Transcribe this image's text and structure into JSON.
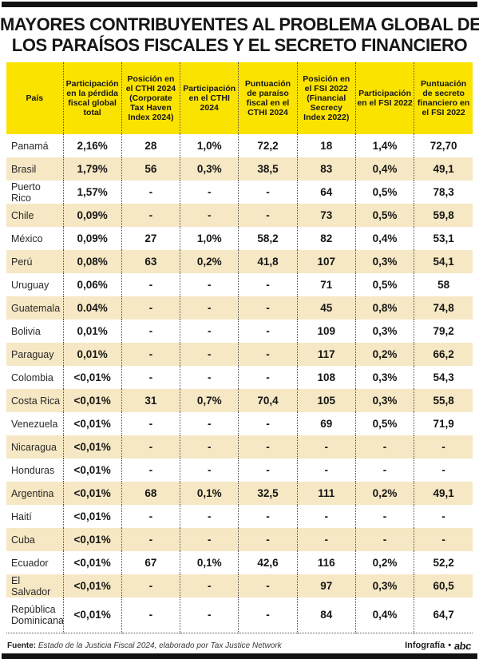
{
  "title": {
    "line1": "MAYORES CONTRIBUYENTES AL PROBLEMA GLOBAL DE",
    "line2": "LOS PARAÍSOS FISCALES Y EL SECRETO FINANCIERO"
  },
  "chart_data": {
    "type": "table",
    "title": "Mayores contribuyentes al problema global de los paraísos fiscales y el secreto financiero",
    "columns": [
      "País",
      "Participación en la pérdida fiscal global total",
      "Posición en el CTHI 2024 (Corporate Tax Haven Index 2024)",
      "Participación en el CTHI 2024",
      "Puntuación de paraíso fiscal en el CTHI 2024",
      "Posición en el FSI 2022 (Financial Secrecy Index 2022)",
      "Participación en el FSI 2022",
      "Puntuación de secreto financiero en el FSI 2022"
    ],
    "rows": [
      {
        "country": "Panamá",
        "values": [
          "2,16%",
          "28",
          "1,0%",
          "72,2",
          "18",
          "1,4%",
          "72,70"
        ]
      },
      {
        "country": "Brasil",
        "values": [
          "1,79%",
          "56",
          "0,3%",
          "38,5",
          "83",
          "0,4%",
          "49,1"
        ]
      },
      {
        "country": "Puerto Rico",
        "values": [
          "1,57%",
          "-",
          "-",
          "-",
          "64",
          "0,5%",
          "78,3"
        ]
      },
      {
        "country": "Chile",
        "values": [
          "0,09%",
          "-",
          "-",
          "-",
          "73",
          "0,5%",
          "59,8"
        ]
      },
      {
        "country": "México",
        "values": [
          "0,09%",
          "27",
          "1,0%",
          "58,2",
          "82",
          "0,4%",
          "53,1"
        ]
      },
      {
        "country": "Perú",
        "values": [
          "0,08%",
          "63",
          "0,2%",
          "41,8",
          "107",
          "0,3%",
          "54,1"
        ]
      },
      {
        "country": "Uruguay",
        "values": [
          "0,06%",
          "-",
          "-",
          "-",
          "71",
          "0,5%",
          "58"
        ]
      },
      {
        "country": "Guatemala",
        "values": [
          "0.04%",
          "-",
          "-",
          "-",
          "45",
          "0,8%",
          "74,8"
        ]
      },
      {
        "country": "Bolivia",
        "values": [
          "0,01%",
          "-",
          "-",
          "-",
          "109",
          "0,3%",
          "79,2"
        ]
      },
      {
        "country": "Paraguay",
        "values": [
          "0,01%",
          "-",
          "-",
          "-",
          "117",
          "0,2%",
          "66,2"
        ]
      },
      {
        "country": "Colombia",
        "values": [
          "<0,01%",
          "-",
          "-",
          "-",
          "108",
          "0,3%",
          "54,3"
        ]
      },
      {
        "country": "Costa Rica",
        "values": [
          "<0,01%",
          "31",
          "0,7%",
          "70,4",
          "105",
          "0,3%",
          "55,8"
        ]
      },
      {
        "country": "Venezuela",
        "values": [
          "<0,01%",
          "-",
          "-",
          "-",
          "69",
          "0,5%",
          "71,9"
        ]
      },
      {
        "country": "Nicaragua",
        "values": [
          "<0,01%",
          "-",
          "-",
          "-",
          "-",
          "-",
          "-"
        ]
      },
      {
        "country": "Honduras",
        "values": [
          "<0,01%",
          "-",
          "-",
          "-",
          "-",
          "-",
          "-"
        ]
      },
      {
        "country": "Argentina",
        "values": [
          "<0,01%",
          "68",
          "0,1%",
          "32,5",
          "111",
          "0,2%",
          "49,1"
        ]
      },
      {
        "country": "Haití",
        "values": [
          "<0,01%",
          "-",
          "-",
          "-",
          "-",
          "-",
          "-"
        ]
      },
      {
        "country": "Cuba",
        "values": [
          "<0,01%",
          "-",
          "-",
          "-",
          "-",
          "-",
          "-"
        ]
      },
      {
        "country": "Ecuador",
        "values": [
          "<0,01%",
          "67",
          "0,1%",
          "42,6",
          "116",
          "0,2%",
          "52,2"
        ]
      },
      {
        "country": "El Salvador",
        "values": [
          "<0,01%",
          "-",
          "-",
          "-",
          "97",
          "0,3%",
          "60,5"
        ]
      },
      {
        "country": "República Dominicana",
        "values": [
          "<0,01%",
          "-",
          "-",
          "-",
          "84",
          "0,4%",
          "64,7"
        ]
      }
    ]
  },
  "footer": {
    "source_label": "Fuente:",
    "source_text": "Estado de la Justicia Fiscal 2024, elaborado por Tax Justice Network",
    "credit_label": "Infografía",
    "credit_separator": "•",
    "logo_text": "abc"
  },
  "colors": {
    "header_yellow": "#fbe300",
    "row_cream": "#f6e8c4",
    "bar_black": "#121212",
    "text": "#1d1d1b",
    "dotted_line": "#4d4d4d"
  }
}
